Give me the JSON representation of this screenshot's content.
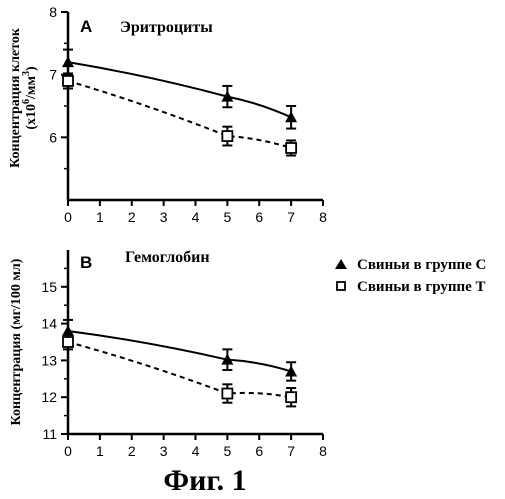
{
  "caption": "Фиг. 1",
  "legend": {
    "items": [
      {
        "marker": "triangle-filled",
        "label": "Свиньи в группе С"
      },
      {
        "marker": "square-open",
        "label": "Свиньи в группе Т"
      }
    ]
  },
  "chart_data": [
    {
      "type": "line",
      "panel_letter": "A",
      "title": "Эритроциты",
      "xlabel": "",
      "ylabel": "Концентрация клеток",
      "ylabel_unit_prefix": "(x10",
      "ylabel_unit_exp": "6",
      "ylabel_unit_mid": "/мм",
      "ylabel_unit_exp2": "3",
      "ylabel_unit_suffix": ")",
      "xlim": [
        0,
        8
      ],
      "ylim": [
        5,
        8
      ],
      "x_ticks": [
        "0",
        "1",
        "2",
        "3",
        "4",
        "5",
        "6",
        "7",
        "8"
      ],
      "y_ticks": [
        "6",
        "7",
        "8"
      ],
      "series": [
        {
          "group": "C",
          "style": "solid",
          "marker": "triangle-filled",
          "x": [
            0,
            5,
            7
          ],
          "values": [
            7.2,
            6.65,
            6.32
          ],
          "err": [
            0.2,
            0.17,
            0.18
          ]
        },
        {
          "group": "T",
          "style": "dashed",
          "marker": "square-open",
          "x": [
            0,
            5,
            7
          ],
          "values": [
            6.9,
            6.02,
            5.83
          ],
          "err": [
            0.12,
            0.15,
            0.12
          ]
        }
      ]
    },
    {
      "type": "line",
      "panel_letter": "B",
      "title": "Гемоглобин",
      "xlabel": "",
      "ylabel": "Концентрация (мг/100 мл)",
      "xlim": [
        0,
        8
      ],
      "ylim": [
        11,
        16
      ],
      "x_ticks": [
        "0",
        "1",
        "2",
        "3",
        "4",
        "5",
        "6",
        "7",
        "8"
      ],
      "y_ticks": [
        "11",
        "12",
        "13",
        "14",
        "15"
      ],
      "series": [
        {
          "group": "C",
          "style": "solid",
          "marker": "triangle-filled",
          "x": [
            0,
            5,
            7
          ],
          "values": [
            13.8,
            13.02,
            12.7
          ],
          "err": [
            0.3,
            0.28,
            0.25
          ]
        },
        {
          "group": "T",
          "style": "dashed",
          "marker": "square-open",
          "x": [
            0,
            5,
            7
          ],
          "values": [
            13.5,
            12.1,
            12.0
          ],
          "err": [
            0.2,
            0.25,
            0.25
          ]
        }
      ]
    }
  ]
}
